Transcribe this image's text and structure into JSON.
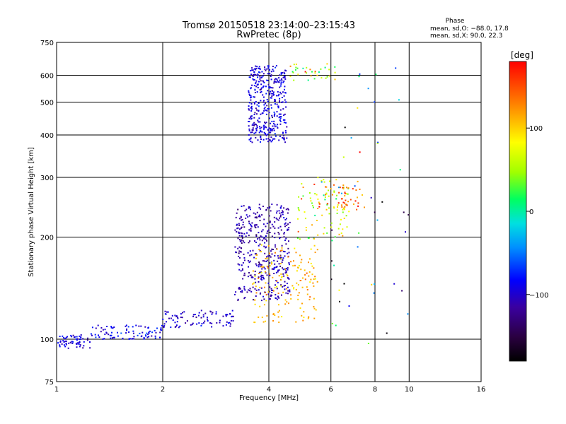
{
  "chart_data": {
    "type": "scatter",
    "title": "Tromsø 20150518 23:14:00–23:15:43",
    "subtitle": "RwPretec (8p)",
    "xlabel": "Frequency [MHz]",
    "ylabel": "Stationary phase Virtual Height [km]",
    "x_scale": "log",
    "y_scale": "log",
    "xlim": [
      1,
      16
    ],
    "ylim": [
      75,
      750
    ],
    "x_ticks": [
      1,
      2,
      4,
      6,
      8,
      10,
      16
    ],
    "x_tick_labels": [
      "1",
      "2",
      "4",
      "6",
      "8",
      "10",
      "16"
    ],
    "y_ticks": [
      75,
      100,
      200,
      300,
      400,
      500,
      600,
      750
    ],
    "y_tick_labels": [
      "75",
      "100",
      "200",
      "300",
      "400",
      "500",
      "600",
      "750"
    ],
    "grid": true,
    "phase_info": {
      "header": "Phase",
      "line_o": "mean, sd,O: −88.0, 17.8",
      "line_x": "mean, sd,X:  90.0, 22.3"
    },
    "colorbar": {
      "label": "[deg]",
      "range": [
        -180,
        180
      ],
      "ticks": [
        100,
        0,
        -100
      ],
      "tick_labels": [
        "100",
        "0",
        "−100"
      ]
    },
    "series": [
      {
        "color_by": "phase",
        "clusters": [
          {
            "x_range": [
              1.0,
              1.25
            ],
            "y_range": [
              94,
              103
            ],
            "phase_mean": -95,
            "phase_sd": 12,
            "count": 60
          },
          {
            "x_range": [
              1.25,
              2.0
            ],
            "y_range": [
              100,
              110
            ],
            "phase_mean": -90,
            "phase_sd": 15,
            "count": 90
          },
          {
            "x_range": [
              2.0,
              3.2
            ],
            "y_range": [
              108,
              122
            ],
            "phase_mean": -100,
            "phase_sd": 12,
            "count": 90
          },
          {
            "x_range": [
              3.2,
              4.6
            ],
            "y_range": [
              130,
              250
            ],
            "phase_mean": -110,
            "phase_sd": 10,
            "count": 420
          },
          {
            "x_range": [
              3.5,
              4.5
            ],
            "y_range": [
              380,
              640
            ],
            "phase_mean": -95,
            "phase_sd": 12,
            "count": 380
          },
          {
            "x_range": [
              3.6,
              5.5
            ],
            "y_range": [
              112,
              190
            ],
            "phase_mean": 110,
            "phase_sd": 15,
            "count": 160
          },
          {
            "x_range": [
              4.8,
              6.8
            ],
            "y_range": [
              195,
              300
            ],
            "phase_mean": 60,
            "phase_sd": 40,
            "count": 90
          },
          {
            "x_range": [
              5.5,
              7.5
            ],
            "y_range": [
              240,
              285
            ],
            "phase_mean": 130,
            "phase_sd": 30,
            "count": 50
          },
          {
            "x_range": [
              4.6,
              6.2
            ],
            "y_range": [
              580,
              650
            ],
            "phase_mean": 60,
            "phase_sd": 45,
            "count": 35
          },
          {
            "x_range": [
              6.0,
              10.0
            ],
            "y_range": [
              90,
              650
            ],
            "phase_mean": -40,
            "phase_sd": 90,
            "count": 45
          }
        ]
      }
    ]
  }
}
